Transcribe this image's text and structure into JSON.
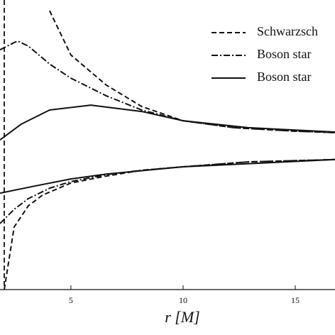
{
  "chart_data": {
    "type": "line",
    "x_label": "r [M]",
    "xlim": [
      1.84,
      16.77
    ],
    "ylim": [
      0,
      10
    ],
    "xticks": [
      5,
      10,
      15
    ],
    "vlines": [
      2.03
    ],
    "legend": "upper right",
    "series": [
      {
        "name": "Schwarzsch",
        "color": "#111111",
        "dash": "dashed",
        "branches": [
          {
            "x": [
              4.05,
              5,
              6.58,
              8.16,
              10,
              12.28,
              15,
              16.77
            ],
            "values": [
              9.63,
              8.1,
              7.06,
              6.32,
              5.83,
              5.59,
              5.47,
              5.42
            ]
          },
          {
            "x": [
              2.03,
              2.47,
              3.1,
              3.73,
              5,
              6.58,
              8.16,
              10,
              12.91,
              16.77
            ],
            "values": [
              0,
              2.16,
              2.89,
              3.26,
              3.68,
              3.92,
              4.12,
              4.24,
              4.41,
              4.49
            ]
          }
        ]
      },
      {
        "name": "Boson star",
        "color": "#111111",
        "dash": "dashdot",
        "branches": [
          {
            "x": [
              1.84,
              2.47,
              2.63,
              3.1,
              4.05,
              5,
              6.58,
              8.16,
              10,
              12.28,
              15,
              16.77
            ],
            "values": [
              8.28,
              8.53,
              8.58,
              8.41,
              7.79,
              7.3,
              6.69,
              6.2,
              5.83,
              5.59,
              5.47,
              5.42
            ]
          },
          {
            "x": [
              1.84,
              2.47,
              3.1,
              4.05,
              5,
              6.58,
              8.16,
              10,
              12.91,
              16.77
            ],
            "values": [
              2.28,
              2.77,
              3.14,
              3.5,
              3.73,
              3.97,
              4.12,
              4.24,
              4.41,
              4.49
            ]
          }
        ]
      },
      {
        "name": "Boson star",
        "color": "#111111",
        "dash": "solid",
        "branches": [
          {
            "x": [
              1.84,
              2.78,
              4.05,
              5.89,
              8.16,
              10,
              12.91,
              16.77
            ],
            "values": [
              5.17,
              5.71,
              6.2,
              6.37,
              6.15,
              5.83,
              5.59,
              5.44
            ]
          },
          {
            "x": [
              1.84,
              3.42,
              5,
              6.58,
              10,
              16.77
            ],
            "values": [
              3.33,
              3.58,
              3.82,
              3.99,
              4.24,
              4.49
            ]
          }
        ]
      }
    ]
  }
}
